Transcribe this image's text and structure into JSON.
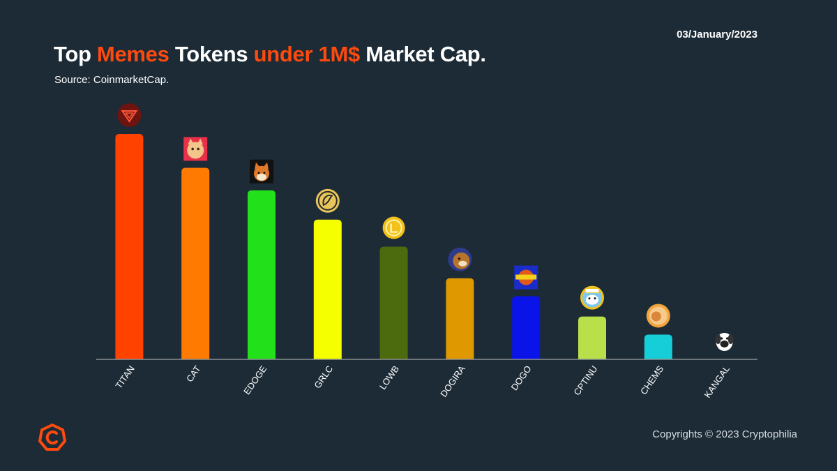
{
  "header": {
    "title_parts": [
      {
        "text": "Top ",
        "highlight": false
      },
      {
        "text": "Memes",
        "highlight": true
      },
      {
        "text": " Tokens ",
        "highlight": false
      },
      {
        "text": "under 1M$",
        "highlight": true
      },
      {
        "text": " Market Cap.",
        "highlight": false
      }
    ],
    "source": "Source: CoinmarketCap.",
    "date": "03/January/2023"
  },
  "footer": {
    "copyright": "Copyrights © 2023 Cryptophilia"
  },
  "colors": {
    "background": "#1c2b36",
    "highlight": "#ff4a0e",
    "axis": "#8a8f94"
  },
  "chart_data": {
    "type": "bar",
    "categories": [
      "TITAN",
      "CAT",
      "EDOGE",
      "GRLC",
      "LOWB",
      "DOGIRA",
      "DOGO",
      "CPTINU",
      "CHEMS",
      "KANGAL"
    ],
    "values": [
      100,
      85,
      75,
      62,
      50,
      36,
      28,
      19,
      11,
      0
    ],
    "bar_colors": [
      "#ff4200",
      "#ff7a00",
      "#22e01a",
      "#f5ff00",
      "#4b6b0e",
      "#e09800",
      "#0a14e8",
      "#b9e04a",
      "#16ced8",
      "#1c2b36"
    ],
    "icons": [
      "titan-token-icon",
      "cat-token-icon",
      "edoge-token-icon",
      "grlc-token-icon",
      "lowb-token-icon",
      "dogira-token-icon",
      "dogo-token-icon",
      "cptinu-token-icon",
      "chems-token-icon",
      "kangal-token-icon"
    ],
    "ylim": [
      0,
      100
    ],
    "grid": false,
    "legend": "none"
  }
}
